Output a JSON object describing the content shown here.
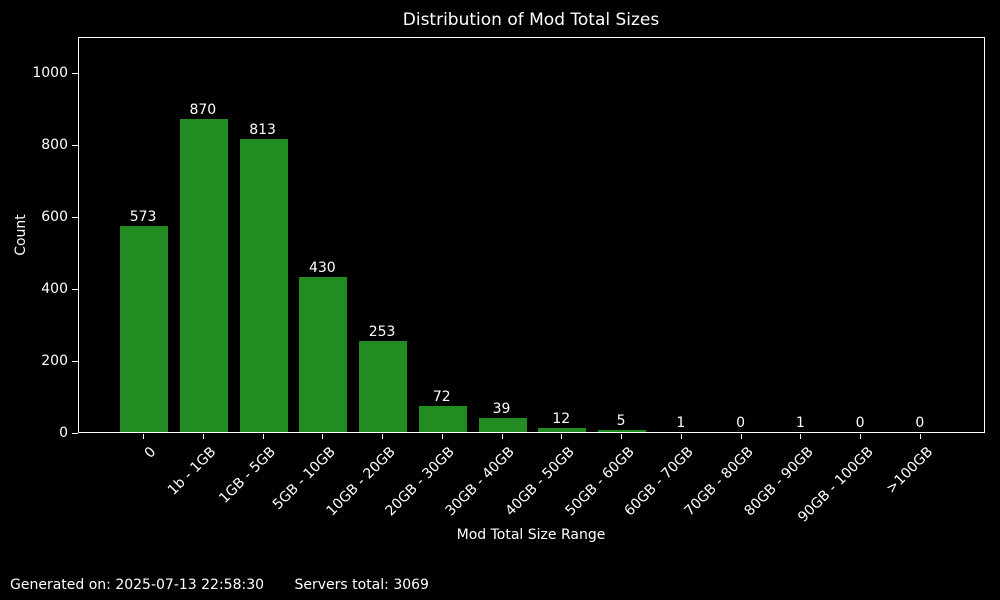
{
  "chart_data": {
    "type": "bar",
    "title": "Distribution of Mod Total Sizes",
    "xlabel": "Mod Total Size Range",
    "ylabel": "Count",
    "categories": [
      "0",
      "1b - 1GB",
      "1GB - 5GB",
      "5GB - 10GB",
      "10GB - 20GB",
      "20GB - 30GB",
      "30GB - 40GB",
      "40GB - 50GB",
      "50GB - 60GB",
      "60GB - 70GB",
      "70GB - 80GB",
      "80GB - 90GB",
      "90GB - 100GB",
      ">100GB"
    ],
    "values": [
      573,
      870,
      813,
      430,
      253,
      72,
      39,
      12,
      5,
      1,
      0,
      1,
      0,
      0
    ],
    "yticks": [
      0,
      200,
      400,
      600,
      800,
      1000
    ],
    "ylim": [
      0,
      1100
    ],
    "grid": false,
    "legend": null,
    "bar_color": "#228b22",
    "background_color": "#000000",
    "text_color": "#ffffff",
    "spine_color": "#ffffff"
  },
  "footer": {
    "generated_on": "Generated on: 2025-07-13 22:58:30",
    "servers_total": "Servers total: 3069"
  }
}
